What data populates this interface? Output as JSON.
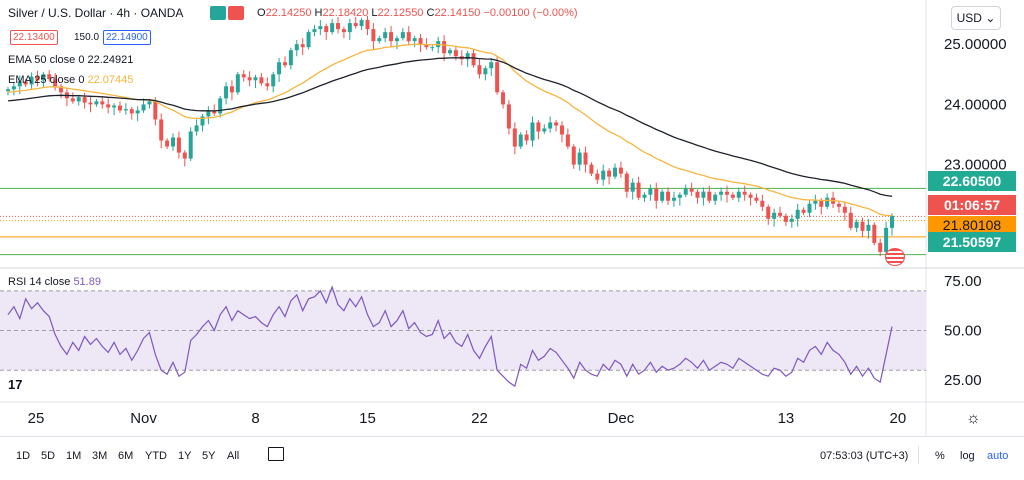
{
  "header": {
    "symbol": "Silver / U.S. Dollar · 4h · OANDA",
    "o_label": "O",
    "o_value": "22.14250",
    "h_label": "H",
    "h_value": "22.18420",
    "l_label": "L",
    "l_value": "22.12550",
    "c_label": "C",
    "c_value": "22.14150",
    "change": "−0.00100 (−0.00%)",
    "sell_price": "22.13400",
    "spread": "150.0",
    "buy_price": "22.14900",
    "currency": "USD",
    "currency_arrow": "⌄"
  },
  "indicators": {
    "ema50_label": "EMA 50 close 0",
    "ema50_value": "22.24921",
    "ema25_label": "EMA 25 close 0",
    "ema25_value": "22.07445",
    "rsi_label": "RSI 14 close",
    "rsi_value": "51.89"
  },
  "badges": {
    "upper_line": "22.60500",
    "countdown": "01:06:57",
    "current": "21.80108",
    "lower_line": "21.50597"
  },
  "toolbar": {
    "ranges": [
      "1D",
      "5D",
      "1M",
      "3M",
      "6M",
      "YTD",
      "1Y",
      "5Y",
      "All"
    ],
    "clock": "07:53:03 (UTC+3)",
    "percent_label": "%",
    "log_label": "log",
    "auto_label": "auto"
  },
  "colors": {
    "up": "#26a69a",
    "down": "#ef5350",
    "ema50": "#1e222d",
    "ema25": "#f7b53e",
    "hline": "#4caf50",
    "orange_line": "#ff9800",
    "rsi": "#7e57c2",
    "rsi_band": "#ede7f6"
  },
  "chart_data": {
    "type": "candlestick",
    "price_axis": {
      "ticks": [
        "25.00000",
        "24.00000",
        "23.00000"
      ],
      "tick_values": [
        25,
        24,
        23
      ],
      "ylim": [
        21.3,
        25.7
      ]
    },
    "x_axis": {
      "tick_labels": [
        "25",
        "Nov",
        "8",
        "15",
        "22",
        "Dec",
        "13",
        "20"
      ],
      "tick_index": [
        0,
        23,
        42,
        61,
        80,
        104,
        132,
        151
      ]
    },
    "horizontal_lines": [
      22.605,
      22.14,
      22.07,
      21.801,
      21.506
    ],
    "rsi_axis": {
      "ticks": [
        "75.00",
        "50.00",
        "25.00"
      ],
      "tick_values": [
        75,
        50,
        25
      ],
      "ylim": [
        15,
        80
      ],
      "band": [
        30,
        70
      ]
    },
    "close": [
      24.25,
      24.3,
      24.38,
      24.33,
      24.46,
      24.4,
      24.5,
      24.42,
      24.3,
      24.2,
      24.1,
      24.05,
      24.12,
      24.03,
      24.0,
      24.05,
      24.0,
      23.95,
      23.98,
      23.9,
      23.92,
      23.85,
      23.9,
      24.0,
      24.05,
      23.75,
      23.4,
      23.3,
      23.45,
      23.2,
      23.1,
      23.55,
      23.65,
      23.8,
      23.9,
      23.85,
      24.1,
      24.3,
      24.2,
      24.5,
      24.45,
      24.4,
      24.45,
      24.35,
      24.3,
      24.5,
      24.7,
      24.65,
      24.9,
      25.0,
      24.95,
      25.2,
      25.25,
      25.3,
      25.2,
      25.35,
      25.25,
      25.2,
      25.35,
      25.3,
      25.4,
      25.25,
      25.05,
      25.1,
      25.2,
      25.05,
      25.1,
      25.2,
      25.05,
      25.1,
      25.0,
      24.95,
      24.95,
      25.05,
      24.85,
      24.9,
      24.8,
      24.75,
      24.85,
      24.65,
      24.5,
      24.6,
      24.7,
      24.2,
      24.0,
      23.6,
      23.3,
      23.5,
      23.4,
      23.7,
      23.55,
      23.6,
      23.7,
      23.65,
      23.5,
      23.3,
      23.0,
      23.2,
      23.0,
      22.85,
      22.75,
      22.9,
      22.8,
      22.95,
      22.85,
      22.55,
      22.7,
      22.45,
      22.5,
      22.6,
      22.4,
      22.55,
      22.4,
      22.45,
      22.5,
      22.6,
      22.55,
      22.45,
      22.55,
      22.4,
      22.5,
      22.55,
      22.5,
      22.45,
      22.55,
      22.5,
      22.45,
      22.4,
      22.3,
      22.1,
      22.2,
      22.15,
      22.05,
      22.1,
      22.25,
      22.2,
      22.35,
      22.4,
      22.3,
      22.45,
      22.35,
      22.3,
      22.2,
      21.95,
      22.05,
      21.9,
      22.0,
      21.7,
      21.55,
      21.95,
      22.15
    ],
    "rsi": [
      58,
      62,
      56,
      66,
      61,
      64,
      60,
      57,
      48,
      42,
      38,
      44,
      40,
      47,
      43,
      46,
      42,
      39,
      44,
      38,
      41,
      35,
      40,
      46,
      49,
      38,
      30,
      28,
      34,
      27,
      29,
      45,
      48,
      52,
      55,
      50,
      58,
      62,
      55,
      60,
      58,
      56,
      57,
      54,
      52,
      58,
      62,
      57,
      65,
      68,
      60,
      66,
      67,
      70,
      64,
      72,
      63,
      60,
      66,
      62,
      67,
      58,
      52,
      54,
      60,
      52,
      55,
      60,
      51,
      54,
      49,
      47,
      48,
      55,
      46,
      49,
      44,
      42,
      48,
      40,
      36,
      42,
      47,
      30,
      27,
      24,
      22,
      33,
      31,
      40,
      35,
      37,
      41,
      39,
      35,
      31,
      26,
      34,
      30,
      28,
      27,
      33,
      30,
      35,
      33,
      27,
      33,
      28,
      30,
      34,
      29,
      32,
      30,
      31,
      33,
      36,
      34,
      31,
      35,
      30,
      32,
      34,
      33,
      31,
      36,
      34,
      32,
      30,
      28,
      27,
      31,
      30,
      27,
      29,
      36,
      34,
      40,
      42,
      38,
      44,
      40,
      38,
      34,
      28,
      32,
      27,
      31,
      26,
      24,
      38,
      52
    ]
  }
}
